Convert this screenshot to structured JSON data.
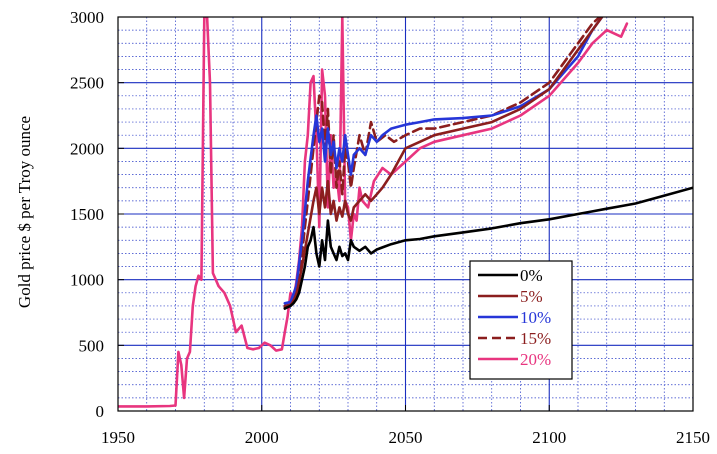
{
  "chart_data": {
    "type": "line",
    "title": "",
    "xlabel": "",
    "ylabel": "Gold price $ per Troy ounce",
    "xlim": [
      1950,
      2150
    ],
    "ylim": [
      0,
      3000
    ],
    "x_ticks": [
      "1950",
      "2000",
      "2050",
      "2100",
      "2150"
    ],
    "y_ticks": [
      "0",
      "500",
      "1000",
      "1500",
      "2000",
      "2500",
      "3000"
    ],
    "grid": true,
    "legend_position": "lower-right",
    "series": [
      {
        "name": "20%",
        "color": "#e8357f",
        "dash": "solid",
        "x": [
          1950,
          1960,
          1968,
          1970,
          1971,
          1972,
          1973,
          1974,
          1975,
          1976,
          1977,
          1978,
          1979,
          1980,
          1981,
          1982,
          1983,
          1984,
          1985,
          1987,
          1989,
          1991,
          1993,
          1995,
          1997,
          1999,
          2001,
          2003,
          2005,
          2007,
          2008,
          2009,
          2010,
          2011,
          2012,
          2013,
          2014,
          2015,
          2016,
          2017,
          2018,
          2019,
          2020,
          2021,
          2022,
          2023,
          2024,
          2025,
          2026,
          2027,
          2028,
          2029,
          2030,
          2031,
          2032,
          2033,
          2034,
          2035,
          2037,
          2039,
          2042,
          2045,
          2050,
          2055,
          2060,
          2070,
          2080,
          2090,
          2100,
          2110,
          2115,
          2120,
          2125,
          2127
        ],
        "values": [
          35,
          35,
          38,
          42,
          450,
          350,
          100,
          400,
          450,
          800,
          950,
          1030,
          1000,
          3000,
          3000,
          2500,
          1050,
          1000,
          950,
          900,
          800,
          600,
          650,
          480,
          470,
          480,
          520,
          500,
          460,
          470,
          600,
          720,
          900,
          850,
          980,
          1150,
          1400,
          1900,
          2100,
          2500,
          2550,
          2100,
          1400,
          2600,
          2400,
          1550,
          2100,
          1700,
          1800,
          1600,
          3000,
          1600,
          1550,
          1300,
          1500,
          1450,
          1700,
          1600,
          1550,
          1750,
          1850,
          1800,
          1900,
          2000,
          2050,
          2100,
          2150,
          2250,
          2400,
          2650,
          2800,
          2900,
          2850,
          2950
        ]
      },
      {
        "name": "15%",
        "color": "#8b1e1e",
        "dash": "dashed",
        "x": [
          2008,
          2010,
          2012,
          2014,
          2016,
          2018,
          2019,
          2020,
          2021,
          2022,
          2023,
          2024,
          2025,
          2026,
          2027,
          2028,
          2029,
          2030,
          2031,
          2032,
          2034,
          2036,
          2038,
          2040,
          2043,
          2046,
          2050,
          2055,
          2060,
          2070,
          2080,
          2090,
          2100,
          2110,
          2115,
          2120
        ],
        "values": [
          800,
          810,
          900,
          1200,
          1600,
          2000,
          2200,
          2400,
          2350,
          2000,
          2300,
          1800,
          2100,
          1700,
          1900,
          1650,
          2000,
          1900,
          1700,
          1850,
          2100,
          1950,
          2200,
          2050,
          2100,
          2050,
          2100,
          2150,
          2150,
          2200,
          2250,
          2350,
          2500,
          2800,
          2950,
          3050
        ]
      },
      {
        "name": "10%",
        "color": "#2636d8",
        "dash": "solid",
        "x": [
          2008,
          2010,
          2012,
          2014,
          2016,
          2018,
          2019,
          2020,
          2021,
          2022,
          2023,
          2024,
          2025,
          2026,
          2027,
          2028,
          2029,
          2030,
          2031,
          2032,
          2034,
          2036,
          2038,
          2040,
          2042,
          2045,
          2050,
          2055,
          2060,
          2070,
          2080,
          2090,
          2100,
          2110,
          2115,
          2120
        ],
        "values": [
          820,
          830,
          950,
          1300,
          1750,
          2100,
          2250,
          2050,
          2150,
          1900,
          2150,
          1950,
          2050,
          1850,
          2000,
          1900,
          2100,
          1950,
          1800,
          1950,
          2000,
          1950,
          2100,
          2050,
          2100,
          2150,
          2180,
          2200,
          2220,
          2230,
          2250,
          2320,
          2450,
          2700,
          2900,
          3050
        ]
      },
      {
        "name": "5%",
        "color": "#8b1e1e",
        "dash": "solid",
        "x": [
          2008,
          2010,
          2012,
          2014,
          2016,
          2018,
          2019,
          2020,
          2021,
          2022,
          2023,
          2024,
          2025,
          2026,
          2027,
          2028,
          2029,
          2030,
          2031,
          2032,
          2034,
          2036,
          2038,
          2040,
          2042,
          2045,
          2050,
          2055,
          2060,
          2070,
          2080,
          2090,
          2100,
          2110,
          2115,
          2120
        ],
        "values": [
          790,
          800,
          880,
          1100,
          1350,
          1600,
          1700,
          1500,
          1700,
          1550,
          1750,
          1500,
          1600,
          1450,
          1550,
          1480,
          1600,
          1500,
          1450,
          1550,
          1600,
          1650,
          1600,
          1650,
          1700,
          1800,
          2000,
          2050,
          2100,
          2150,
          2200,
          2300,
          2450,
          2750,
          2900,
          3050
        ]
      },
      {
        "name": "0%",
        "color": "#000000",
        "dash": "solid",
        "x": [
          2008,
          2009,
          2010,
          2011,
          2012,
          2013,
          2014,
          2015,
          2016,
          2017,
          2018,
          2019,
          2020,
          2021,
          2022,
          2023,
          2024,
          2025,
          2026,
          2027,
          2028,
          2029,
          2030,
          2031,
          2032,
          2034,
          2036,
          2038,
          2040,
          2045,
          2050,
          2055,
          2060,
          2070,
          2080,
          2090,
          2100,
          2110,
          2115,
          2120,
          2125,
          2130,
          2140,
          2150
        ],
        "values": [
          780,
          790,
          800,
          820,
          850,
          900,
          1000,
          1100,
          1250,
          1300,
          1400,
          1200,
          1100,
          1300,
          1150,
          1450,
          1250,
          1200,
          1150,
          1250,
          1180,
          1200,
          1150,
          1300,
          1250,
          1220,
          1250,
          1200,
          1230,
          1270,
          1300,
          1310,
          1330,
          1360,
          1390,
          1430,
          1460,
          1500,
          1520,
          1540,
          1560,
          1580,
          1640,
          1700
        ]
      }
    ]
  }
}
